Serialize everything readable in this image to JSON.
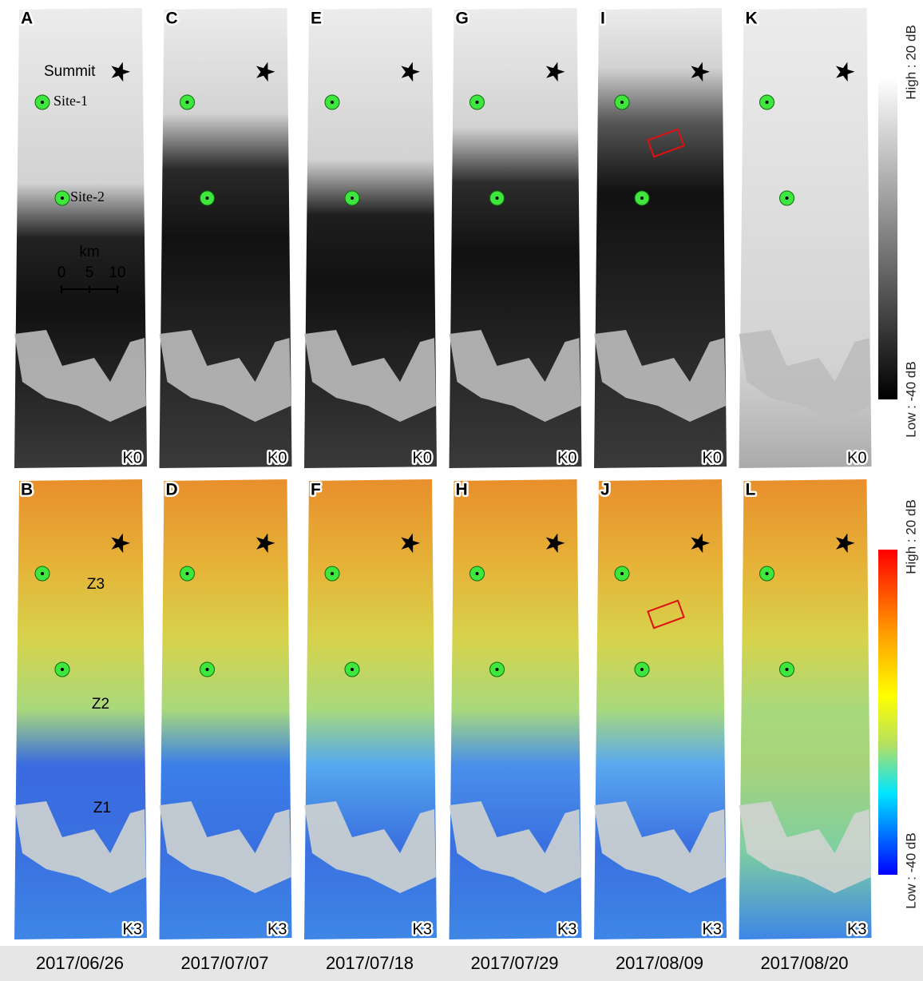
{
  "panels": [
    {
      "letter": "A",
      "band": "K0"
    },
    {
      "letter": "C",
      "band": "K0"
    },
    {
      "letter": "E",
      "band": "K0"
    },
    {
      "letter": "G",
      "band": "K0"
    },
    {
      "letter": "I",
      "band": "K0"
    },
    {
      "letter": "K",
      "band": "K0"
    },
    {
      "letter": "B",
      "band": "K3"
    },
    {
      "letter": "D",
      "band": "K3"
    },
    {
      "letter": "F",
      "band": "K3"
    },
    {
      "letter": "H",
      "band": "K3"
    },
    {
      "letter": "J",
      "band": "K3"
    },
    {
      "letter": "L",
      "band": "K3"
    }
  ],
  "dates": [
    "2017/06/26",
    "2017/07/07",
    "2017/07/18",
    "2017/07/29",
    "2017/08/09",
    "2017/08/20"
  ],
  "colorbars": [
    {
      "high": "High : 20 dB",
      "low": "Low : -40 dB"
    },
    {
      "high": "High : 20 dB",
      "low": "Low : -40 dB"
    }
  ],
  "annotations": {
    "summit": "Summit",
    "site1": "Site-1",
    "site2": "Site-2",
    "scale_unit": "km",
    "scale_ticks": [
      "0",
      "5",
      "10"
    ],
    "zones": [
      "Z3",
      "Z2",
      "Z1"
    ]
  }
}
